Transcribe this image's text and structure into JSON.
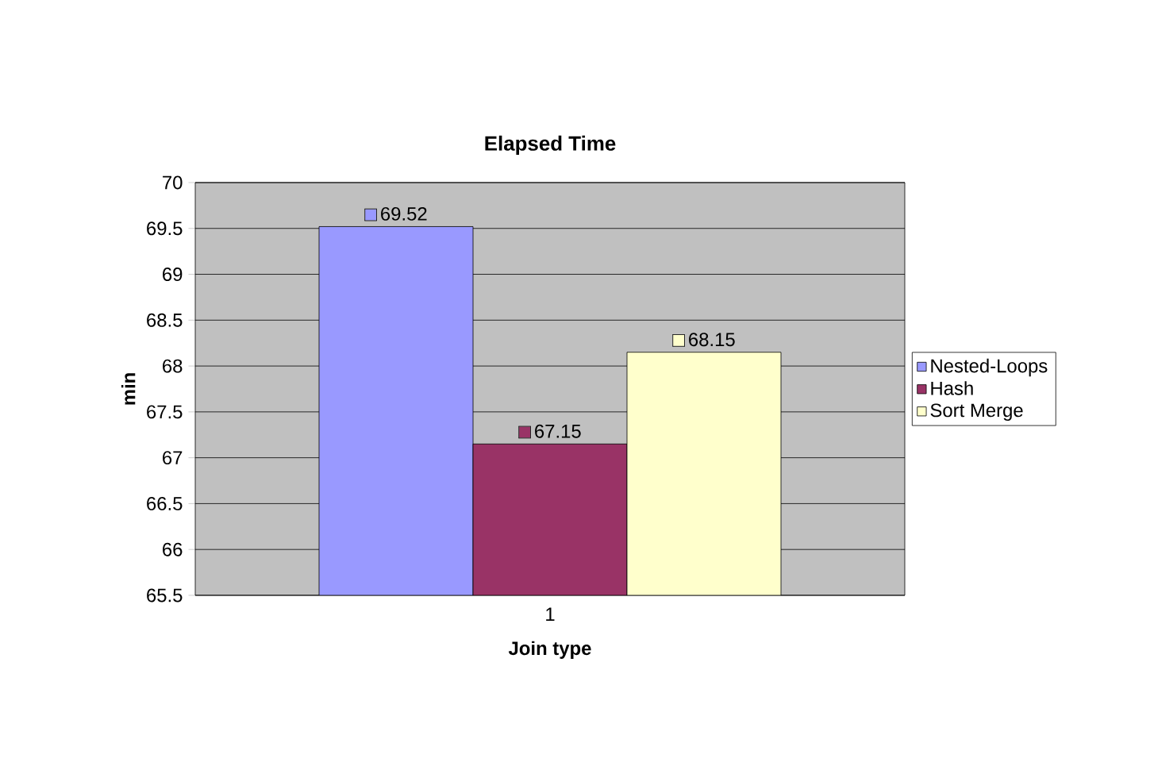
{
  "chart_data": {
    "type": "bar",
    "title": "Elapsed Time",
    "xlabel": "Join type",
    "ylabel": "min",
    "categories": [
      "1"
    ],
    "series": [
      {
        "name": "Nested-Loops",
        "color": "#9999ff",
        "values": [
          69.52
        ]
      },
      {
        "name": "Hash",
        "color": "#993366",
        "values": [
          67.15
        ]
      },
      {
        "name": "Sort Merge",
        "color": "#ffffcc",
        "values": [
          68.15
        ]
      }
    ],
    "ylim": [
      65.5,
      70
    ],
    "yticks": [
      65.5,
      66,
      66.5,
      67,
      67.5,
      68,
      68.5,
      69,
      69.5,
      70
    ],
    "grid": "y",
    "legend": "right",
    "data_labels": true
  }
}
